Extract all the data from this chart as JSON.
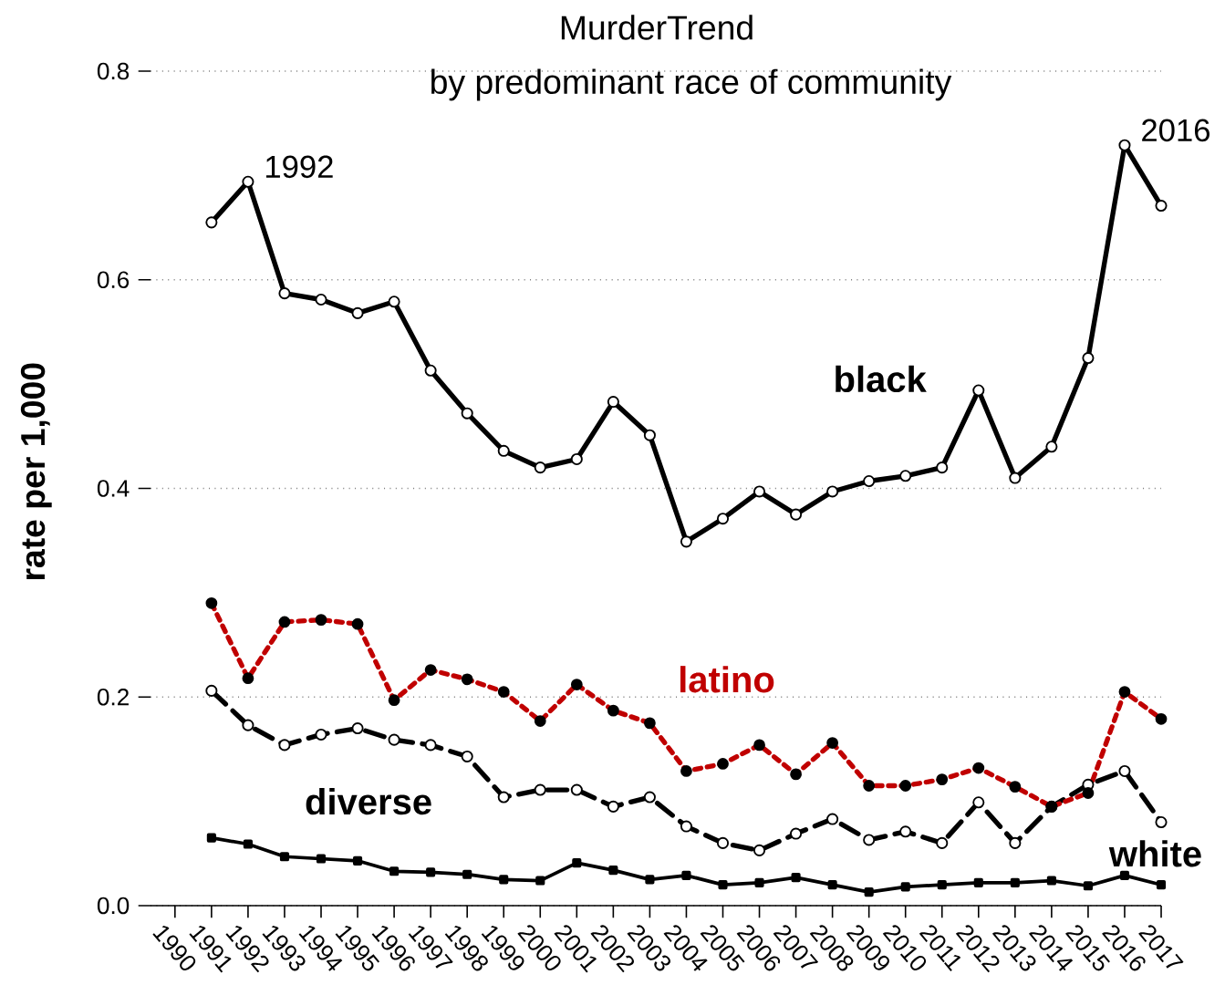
{
  "chart_data": {
    "type": "line",
    "title": "MurderTrend",
    "subtitle": "by predominant race of community",
    "ylabel": "rate per 1,000",
    "x": [
      1991,
      1992,
      1993,
      1994,
      1995,
      1996,
      1997,
      1998,
      1999,
      2000,
      2001,
      2002,
      2003,
      2004,
      2005,
      2006,
      2007,
      2008,
      2009,
      2010,
      2011,
      2012,
      2013,
      2014,
      2015,
      2016,
      2017
    ],
    "series": [
      {
        "name": "black",
        "color": "#000000",
        "marker": "circle",
        "line_style": "solid",
        "values": [
          0.655,
          0.694,
          0.587,
          0.581,
          0.568,
          0.579,
          0.513,
          0.472,
          0.436,
          0.42,
          0.428,
          0.483,
          0.451,
          0.349,
          0.371,
          0.397,
          0.375,
          0.397,
          0.407,
          0.412,
          0.42,
          0.494,
          0.41,
          0.44,
          0.525,
          0.729,
          0.671
        ]
      },
      {
        "name": "latino",
        "color": "#c00000",
        "marker": "circle",
        "line_style": "dotted",
        "values": [
          0.29,
          0.218,
          0.272,
          0.274,
          0.27,
          0.197,
          0.226,
          0.217,
          0.205,
          0.177,
          0.212,
          0.187,
          0.175,
          0.129,
          0.136,
          0.154,
          0.126,
          0.156,
          0.115,
          0.115,
          0.121,
          0.132,
          0.114,
          0.095,
          0.108,
          0.205,
          0.179
        ]
      },
      {
        "name": "diverse",
        "color": "#000000",
        "marker": "circle",
        "line_style": "dashed",
        "values": [
          0.206,
          0.173,
          0.154,
          0.164,
          0.17,
          0.159,
          0.154,
          0.143,
          0.104,
          0.111,
          0.111,
          0.095,
          0.104,
          0.076,
          0.06,
          0.053,
          0.069,
          0.083,
          0.063,
          0.071,
          0.06,
          0.099,
          0.06,
          0.095,
          0.116,
          0.129,
          0.08
        ]
      },
      {
        "name": "white",
        "color": "#000000",
        "marker": "square",
        "line_style": "solid",
        "values": [
          0.065,
          0.059,
          0.047,
          0.045,
          0.043,
          0.033,
          0.032,
          0.03,
          0.025,
          0.024,
          0.041,
          0.034,
          0.025,
          0.029,
          0.02,
          0.022,
          0.027,
          0.02,
          0.013,
          0.018,
          0.02,
          0.022,
          0.022,
          0.024,
          0.019,
          0.029,
          0.02
        ]
      }
    ],
    "xlim": [
      1989.33,
      2017
    ],
    "xticks": [
      1990,
      1991,
      1992,
      1993,
      1994,
      1995,
      1996,
      1997,
      1998,
      1999,
      2000,
      2001,
      2002,
      2003,
      2004,
      2005,
      2006,
      2007,
      2008,
      2009,
      2010,
      2011,
      2012,
      2013,
      2014,
      2015,
      2016,
      2017
    ],
    "ylim": [
      0,
      0.8
    ],
    "yticks": [
      {
        "value": 0,
        "label": "0.0"
      },
      {
        "value": 0.2,
        "label": "0.2"
      },
      {
        "value": 0.4,
        "label": "0.4"
      },
      {
        "value": 0.6,
        "label": "0.6"
      },
      {
        "value": 0.8,
        "label": "0.8"
      }
    ],
    "grid": "y",
    "annotations": [
      {
        "text": "1992",
        "x": 1992,
        "y": 0.694
      },
      {
        "text": "2016",
        "x": 2016,
        "y": 0.729
      }
    ]
  }
}
